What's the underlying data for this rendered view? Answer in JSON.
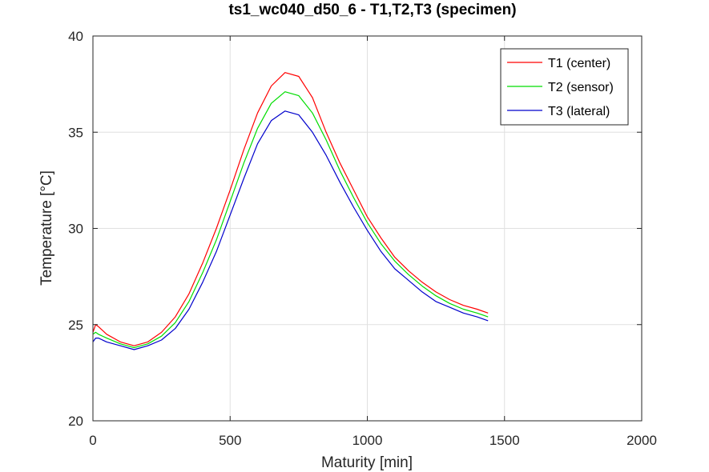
{
  "chart_data": {
    "type": "line",
    "title": "ts1_wc040_d50_6 - T1,T2,T3 (specimen)",
    "xlabel": "Maturity [min]",
    "ylabel": "Temperature [°C]",
    "xlim": [
      0,
      2000
    ],
    "ylim": [
      20,
      40
    ],
    "xticks": [
      0,
      500,
      1000,
      1500,
      2000
    ],
    "yticks": [
      20,
      25,
      30,
      35,
      40
    ],
    "x_tick_labels": [
      "0",
      "500",
      "1000",
      "1500",
      "2000"
    ],
    "y_tick_labels": [
      "20",
      "25",
      "30",
      "35",
      "40"
    ],
    "grid": true,
    "legend_position": "top-right",
    "series": [
      {
        "name": "T1 (center)",
        "color": "#ff0000",
        "x": [
          0,
          10,
          20,
          50,
          100,
          150,
          200,
          250,
          300,
          350,
          400,
          450,
          500,
          550,
          600,
          650,
          700,
          750,
          800,
          850,
          900,
          950,
          1000,
          1050,
          1100,
          1150,
          1200,
          1250,
          1300,
          1350,
          1400,
          1440
        ],
        "y": [
          24.6,
          25.0,
          24.9,
          24.5,
          24.1,
          23.9,
          24.1,
          24.6,
          25.4,
          26.6,
          28.2,
          30.0,
          32.0,
          34.1,
          36.0,
          37.4,
          38.1,
          37.9,
          36.8,
          35.0,
          33.4,
          32.0,
          30.6,
          29.5,
          28.5,
          27.8,
          27.2,
          26.7,
          26.3,
          26.0,
          25.8,
          25.6
        ]
      },
      {
        "name": "T2 (sensor)",
        "color": "#00dd00",
        "x": [
          0,
          10,
          20,
          50,
          100,
          150,
          200,
          250,
          300,
          350,
          400,
          450,
          500,
          550,
          600,
          650,
          700,
          750,
          800,
          850,
          900,
          950,
          1000,
          1050,
          1100,
          1150,
          1200,
          1250,
          1300,
          1350,
          1400,
          1440
        ],
        "y": [
          24.5,
          24.6,
          24.5,
          24.3,
          24.0,
          23.8,
          24.0,
          24.4,
          25.1,
          26.2,
          27.7,
          29.4,
          31.4,
          33.4,
          35.2,
          36.5,
          37.1,
          36.9,
          36.0,
          34.6,
          33.0,
          31.6,
          30.3,
          29.2,
          28.3,
          27.6,
          27.0,
          26.5,
          26.1,
          25.8,
          25.6,
          25.4
        ]
      },
      {
        "name": "T3 (lateral)",
        "color": "#0000cc",
        "x": [
          0,
          10,
          20,
          50,
          100,
          150,
          200,
          250,
          300,
          350,
          400,
          450,
          500,
          550,
          600,
          650,
          700,
          750,
          800,
          850,
          900,
          950,
          1000,
          1050,
          1100,
          1150,
          1200,
          1250,
          1300,
          1350,
          1400,
          1440
        ],
        "y": [
          24.1,
          24.3,
          24.3,
          24.1,
          23.9,
          23.7,
          23.9,
          24.2,
          24.8,
          25.8,
          27.2,
          28.8,
          30.7,
          32.6,
          34.4,
          35.6,
          36.1,
          35.9,
          35.0,
          33.8,
          32.4,
          31.1,
          29.9,
          28.8,
          27.9,
          27.3,
          26.7,
          26.2,
          25.9,
          25.6,
          25.4,
          25.2
        ]
      }
    ]
  }
}
